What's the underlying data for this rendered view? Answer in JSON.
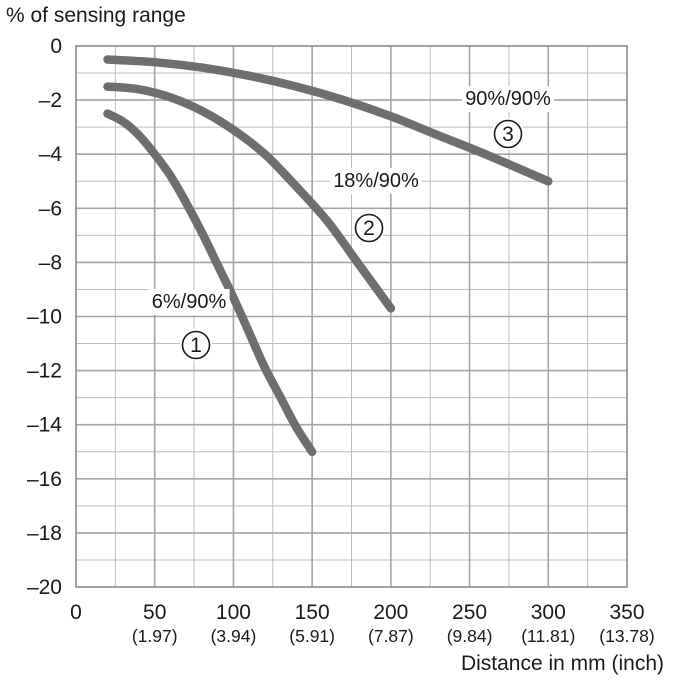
{
  "chart_data": {
    "type": "line",
    "ylabel": "% of sensing range",
    "xlabel": "Distance in mm (inch)",
    "xlim": [
      0,
      350
    ],
    "ylim": [
      -20,
      0
    ],
    "x_major_ticks": [
      0,
      50,
      100,
      150,
      200,
      250,
      300,
      350
    ],
    "x_tick_labels": [
      "0",
      "50",
      "100",
      "150",
      "200",
      "250",
      "300",
      "350"
    ],
    "x_tick_sublabels": [
      "",
      "(1.97)",
      "(3.94)",
      "(5.91)",
      "(7.87)",
      "(9.84)",
      "(11.81)",
      "(13.78)"
    ],
    "y_major_ticks": [
      0,
      -2,
      -4,
      -6,
      -8,
      -10,
      -12,
      -14,
      -16,
      -18,
      -20
    ],
    "y_tick_labels": [
      "0",
      "–2",
      "–4",
      "–6",
      "–8",
      "–10",
      "–12",
      "–14",
      "–16",
      "–18",
      "–20"
    ],
    "grid": true,
    "line_color": "#6e6e6e",
    "series": [
      {
        "name": "6%/90%",
        "marker": "①",
        "x": [
          20,
          30,
          40,
          50,
          60,
          70,
          80,
          90,
          100,
          110,
          120,
          130,
          140,
          150
        ],
        "y": [
          -2.5,
          -2.8,
          -3.3,
          -4.0,
          -4.8,
          -5.8,
          -6.9,
          -8.1,
          -9.3,
          -10.6,
          -11.9,
          -13.0,
          -14.1,
          -15.0
        ]
      },
      {
        "name": "18%/90%",
        "marker": "②",
        "x": [
          20,
          40,
          60,
          80,
          100,
          120,
          140,
          160,
          180,
          200
        ],
        "y": [
          -1.5,
          -1.6,
          -1.9,
          -2.4,
          -3.1,
          -4.0,
          -5.2,
          -6.5,
          -8.1,
          -9.7
        ]
      },
      {
        "name": "90%/90%",
        "marker": "③",
        "x": [
          20,
          50,
          80,
          110,
          140,
          170,
          200,
          230,
          260,
          300
        ],
        "y": [
          -0.5,
          -0.6,
          -0.8,
          -1.1,
          -1.5,
          -2.0,
          -2.6,
          -3.3,
          -4.0,
          -5.0
        ]
      }
    ]
  }
}
